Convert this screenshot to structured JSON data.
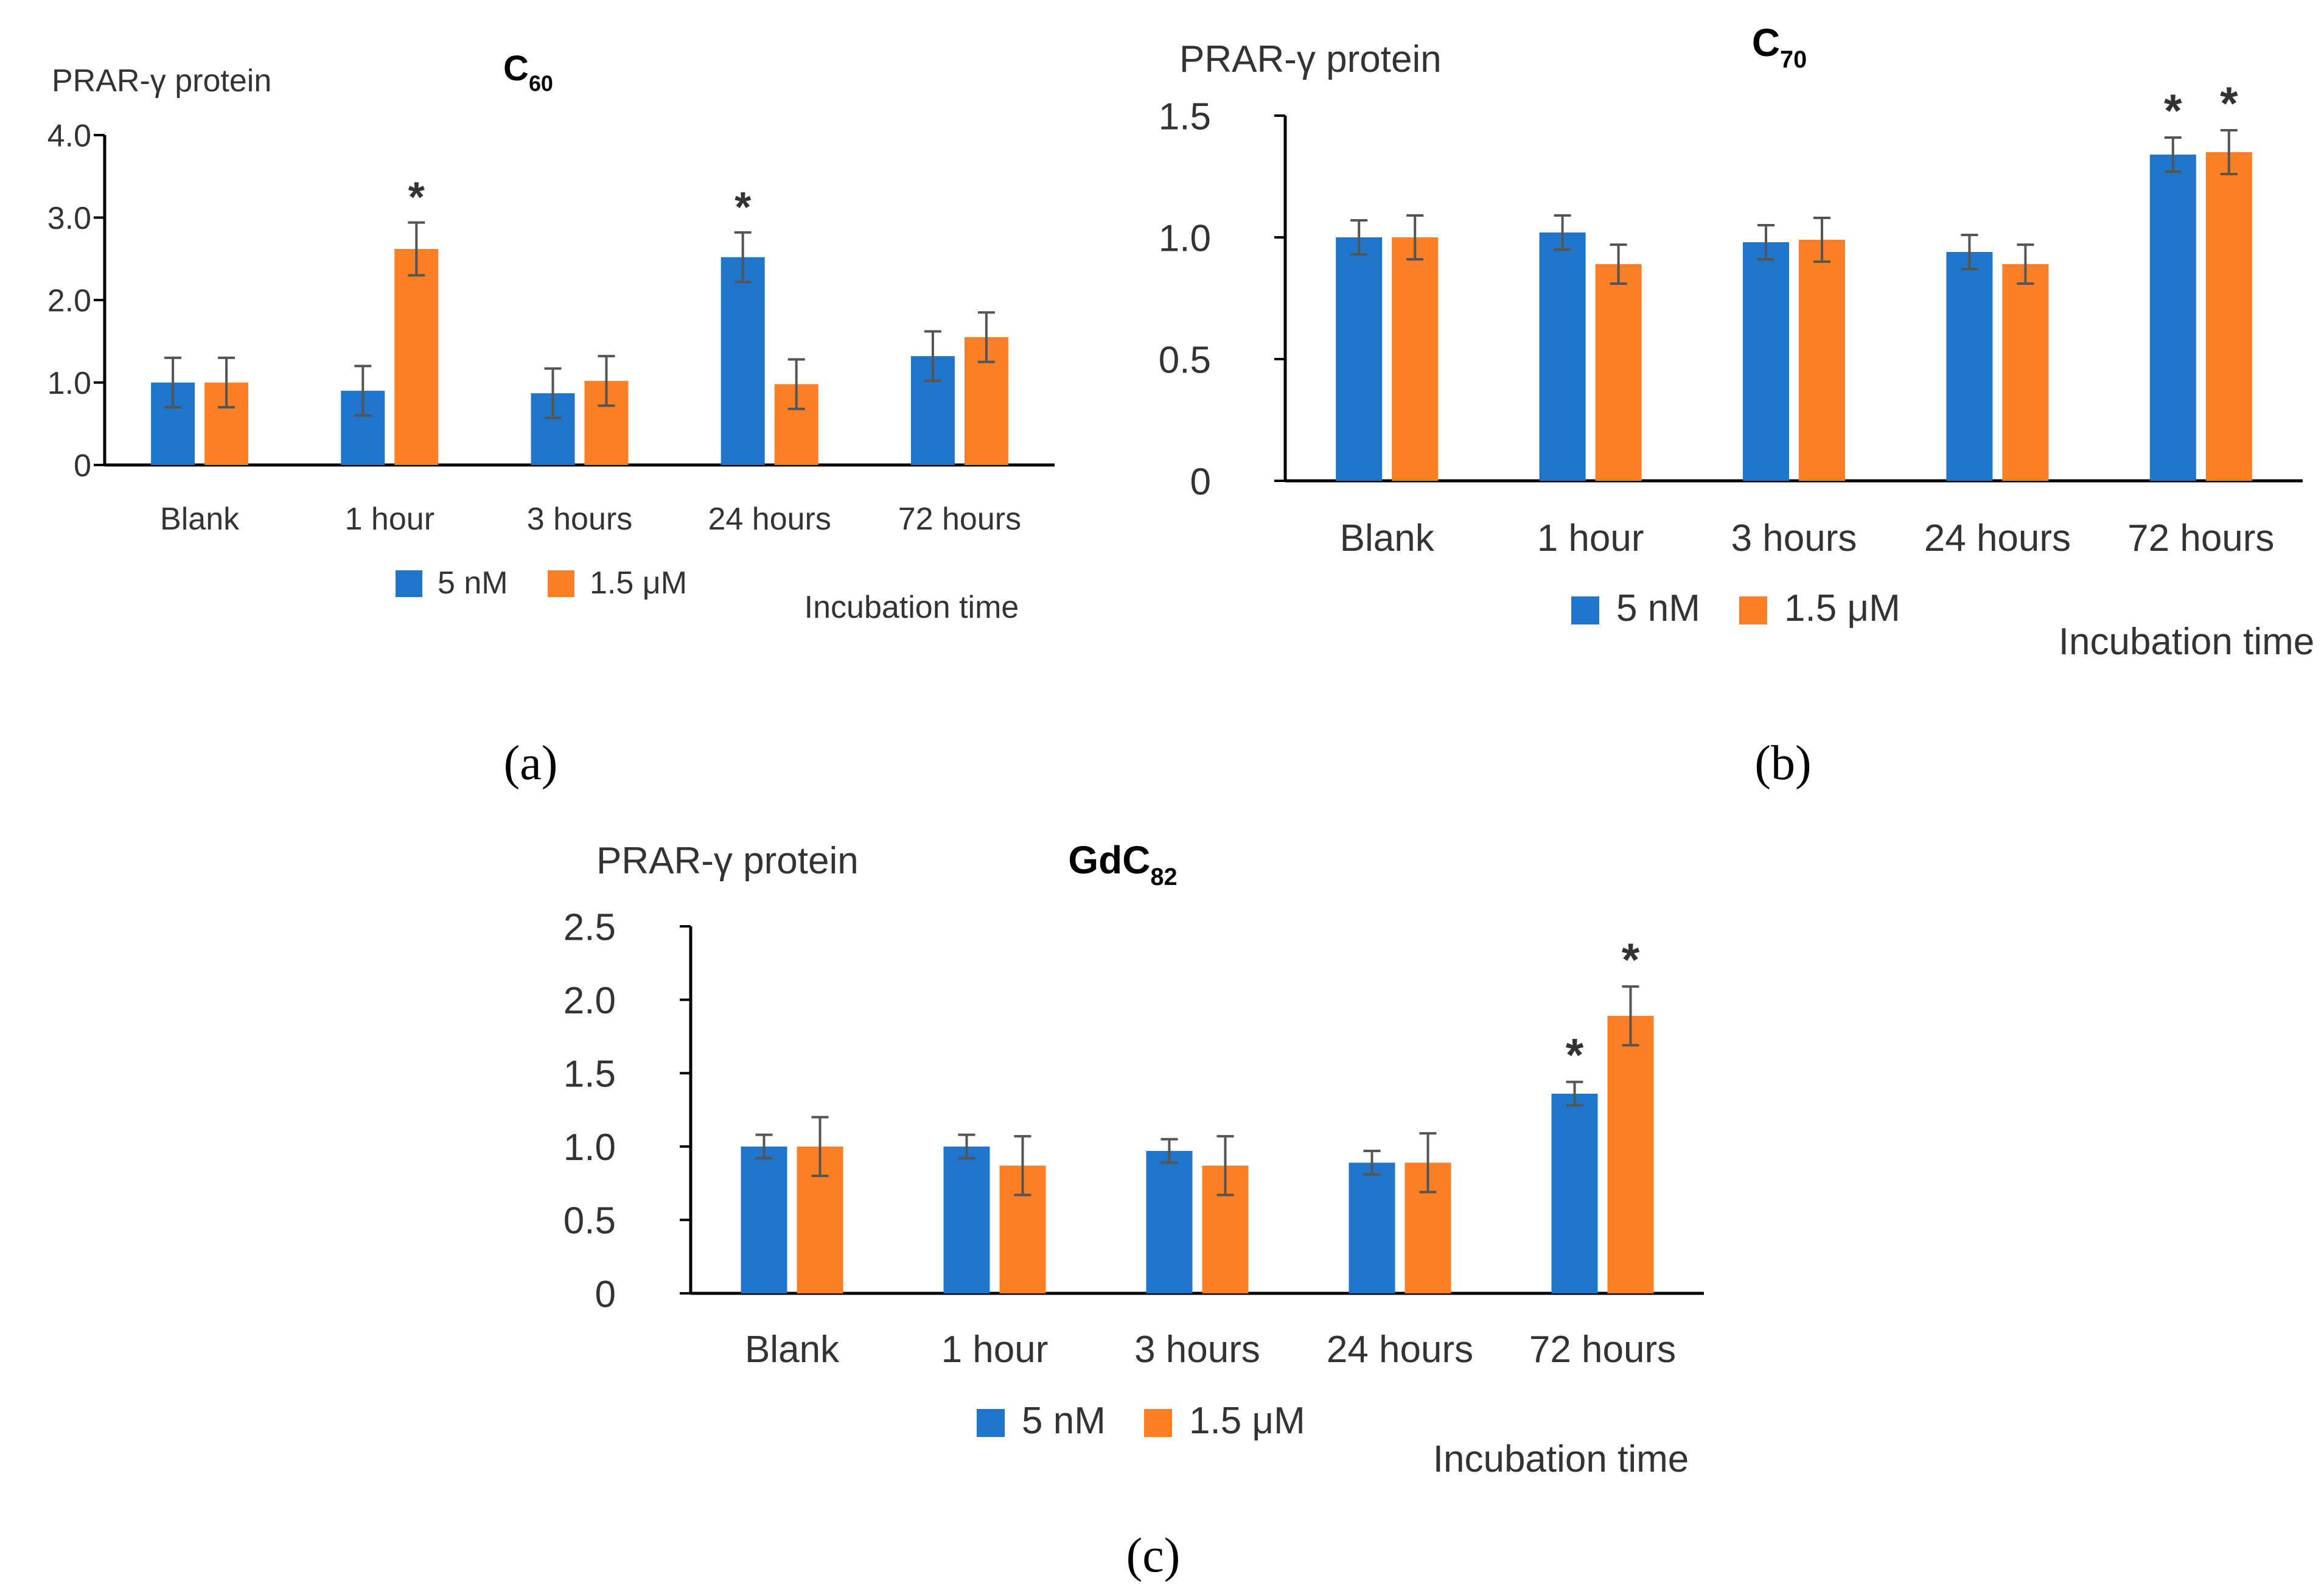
{
  "figure": {
    "captions": [
      "(a)",
      "(b)",
      "(c)"
    ]
  },
  "colors": {
    "series_5nM": "#1f75c9",
    "series_15uM": "#fb7f24",
    "axis": "#000000",
    "errorbar": "#555555",
    "text": "#333333"
  },
  "chart_data": [
    {
      "type": "bar",
      "panel": "(a)",
      "title_main": "C",
      "title_sub": "60",
      "ylabel": "PRAR-γ protein",
      "xlabel": "Incubation time",
      "categories": [
        "Blank",
        "1 hour",
        "3 hours",
        "24 hours",
        "72 hours"
      ],
      "yticks": [
        "0",
        "1.0",
        "2.0",
        "3.0",
        "4.0"
      ],
      "ylim": [
        0,
        4.0
      ],
      "series": [
        {
          "name": "5 nM",
          "values": [
            1.0,
            0.9,
            0.87,
            2.52,
            1.32
          ],
          "errors": [
            0.3,
            0.3,
            0.3,
            0.3,
            0.3
          ],
          "significant": [
            false,
            false,
            false,
            true,
            false
          ]
        },
        {
          "name": "1.5  μM",
          "values": [
            1.0,
            2.62,
            1.02,
            0.98,
            1.55
          ],
          "errors": [
            0.3,
            0.32,
            0.3,
            0.3,
            0.3
          ],
          "significant": [
            false,
            true,
            false,
            false,
            false
          ]
        }
      ],
      "significance_marker": "*"
    },
    {
      "type": "bar",
      "panel": "(b)",
      "title_main": "C",
      "title_sub": "70",
      "ylabel": "PRAR-γ protein",
      "xlabel": "Incubation time",
      "categories": [
        "Blank",
        "1 hour",
        "3 hours",
        "24 hours",
        "72 hours"
      ],
      "yticks": [
        "0",
        "0.5",
        "1.0",
        "1.5"
      ],
      "ylim": [
        0,
        1.5
      ],
      "series": [
        {
          "name": "5 nM",
          "values": [
            1.0,
            1.02,
            0.98,
            0.94,
            1.34
          ],
          "errors": [
            0.07,
            0.07,
            0.07,
            0.07,
            0.07
          ],
          "significant": [
            false,
            false,
            false,
            false,
            true
          ]
        },
        {
          "name": "1.5  μM",
          "values": [
            1.0,
            0.89,
            0.99,
            0.89,
            1.35
          ],
          "errors": [
            0.09,
            0.08,
            0.09,
            0.08,
            0.09
          ],
          "significant": [
            false,
            false,
            false,
            false,
            true
          ]
        }
      ],
      "significance_marker": "*"
    },
    {
      "type": "bar",
      "panel": "(c)",
      "title_main": "GdC",
      "title_sub": "82",
      "ylabel": "PRAR-γ protein",
      "xlabel": "Incubation time",
      "categories": [
        "Blank",
        "1 hour",
        "3 hours",
        "24 hours",
        "72 hours"
      ],
      "yticks": [
        "0",
        "0.5",
        "1.0",
        "1.5",
        "2.0",
        "2.5"
      ],
      "ylim": [
        0,
        2.5
      ],
      "series": [
        {
          "name": "5 nM",
          "values": [
            1.0,
            1.0,
            0.97,
            0.89,
            1.36
          ],
          "errors": [
            0.08,
            0.08,
            0.08,
            0.08,
            0.08
          ],
          "significant": [
            false,
            false,
            false,
            false,
            true
          ]
        },
        {
          "name": "1.5  μM",
          "values": [
            1.0,
            0.87,
            0.87,
            0.89,
            1.89
          ],
          "errors": [
            0.2,
            0.2,
            0.2,
            0.2,
            0.2
          ],
          "significant": [
            false,
            false,
            false,
            false,
            true
          ]
        }
      ],
      "significance_marker": "*"
    }
  ]
}
